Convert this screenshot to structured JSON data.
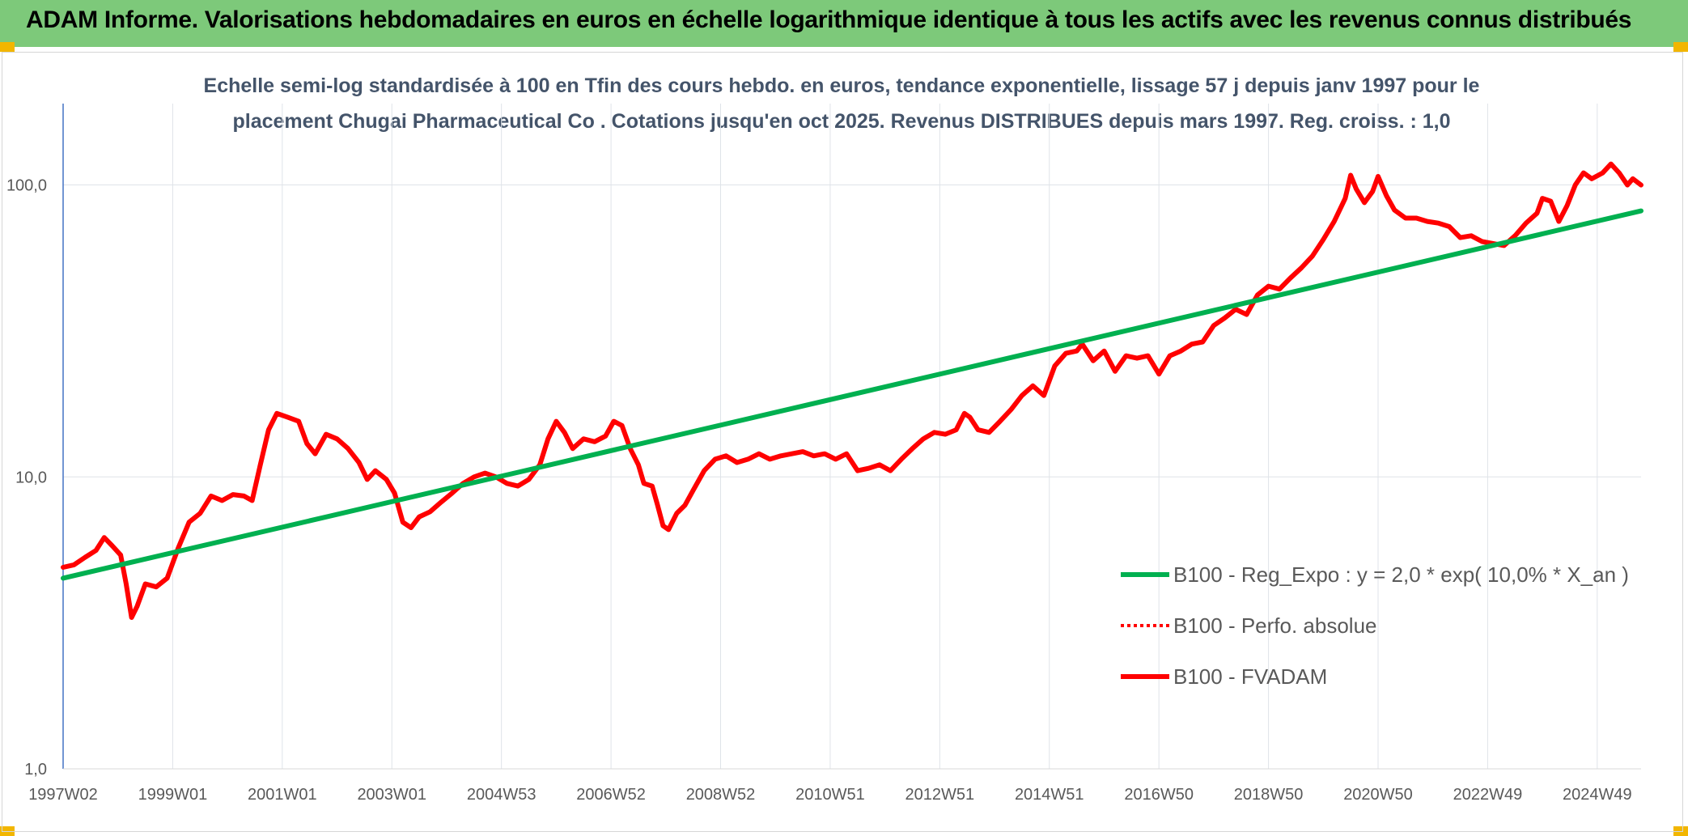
{
  "header": {
    "title": "ADAM Informe. Valorisations hebdomadaires en euros en échelle logarithmique identique à tous les actifs avec les revenus connus distribués"
  },
  "chart_data": {
    "type": "line",
    "subtitle_lines": [
      "Echelle semi-log standardisée à 100 en Tfin des cours hebdo. en euros, tendance exponentielle, lissage 57 j depuis janv 1997 pour le",
      "placement Chugai Pharmaceutical Co . Cotations jusqu'en oct 2025. Revenus DISTRIBUES depuis mars 1997. Reg. croiss. : 1,0"
    ],
    "y_scale": "log",
    "ylim": [
      1,
      190
    ],
    "y_ticks": [
      {
        "value": 1,
        "label": "1,0"
      },
      {
        "value": 10,
        "label": "10,0"
      },
      {
        "value": 100,
        "label": "100,0"
      }
    ],
    "x_range": [
      1997.0,
      2025.8
    ],
    "x_ticks": [
      {
        "x": 1997.0,
        "label": "1997W02"
      },
      {
        "x": 1999.0,
        "label": "1999W01"
      },
      {
        "x": 2001.0,
        "label": "2001W01"
      },
      {
        "x": 2003.0,
        "label": "2003W01"
      },
      {
        "x": 2005.0,
        "label": "2004W53"
      },
      {
        "x": 2007.0,
        "label": "2006W52"
      },
      {
        "x": 2009.0,
        "label": "2008W52"
      },
      {
        "x": 2011.0,
        "label": "2010W51"
      },
      {
        "x": 2013.0,
        "label": "2012W51"
      },
      {
        "x": 2015.0,
        "label": "2014W51"
      },
      {
        "x": 2017.0,
        "label": "2016W50"
      },
      {
        "x": 2019.0,
        "label": "2018W50"
      },
      {
        "x": 2021.0,
        "label": "2020W50"
      },
      {
        "x": 2023.0,
        "label": "2022W49"
      },
      {
        "x": 2025.0,
        "label": "2024W49"
      }
    ],
    "grid": true,
    "legend_position": "bottom-right",
    "series": [
      {
        "name": "B100 - Reg_Expo : y = 2,0 * exp( 10,0% *  X_an )",
        "color": "#00b050",
        "style": "solid",
        "points": [
          [
            1997.0,
            4.5
          ],
          [
            2025.8,
            81.5
          ]
        ]
      },
      {
        "name": "B100 - Perfo. absolue",
        "color": "#ff0000",
        "style": "dotted",
        "points": []
      },
      {
        "name": "B100 - FVADAM",
        "color": "#ff0000",
        "style": "solid",
        "points": [
          [
            1997.0,
            4.9
          ],
          [
            1997.2,
            5.0
          ],
          [
            1997.4,
            5.3
          ],
          [
            1997.6,
            5.6
          ],
          [
            1997.75,
            6.2
          ],
          [
            1997.9,
            5.8
          ],
          [
            1998.05,
            5.4
          ],
          [
            1998.15,
            4.3
          ],
          [
            1998.25,
            3.3
          ],
          [
            1998.35,
            3.6
          ],
          [
            1998.5,
            4.3
          ],
          [
            1998.7,
            4.2
          ],
          [
            1998.9,
            4.5
          ],
          [
            1999.1,
            5.7
          ],
          [
            1999.3,
            7.0
          ],
          [
            1999.5,
            7.5
          ],
          [
            1999.7,
            8.6
          ],
          [
            1999.9,
            8.3
          ],
          [
            2000.1,
            8.7
          ],
          [
            2000.3,
            8.6
          ],
          [
            2000.45,
            8.3
          ],
          [
            2000.6,
            11.0
          ],
          [
            2000.75,
            14.5
          ],
          [
            2000.9,
            16.5
          ],
          [
            2001.1,
            16.0
          ],
          [
            2001.3,
            15.5
          ],
          [
            2001.45,
            13.0
          ],
          [
            2001.6,
            12.0
          ],
          [
            2001.8,
            14.0
          ],
          [
            2002.0,
            13.5
          ],
          [
            2002.2,
            12.5
          ],
          [
            2002.4,
            11.2
          ],
          [
            2002.55,
            9.8
          ],
          [
            2002.7,
            10.5
          ],
          [
            2002.9,
            9.8
          ],
          [
            2003.05,
            8.8
          ],
          [
            2003.2,
            7.0
          ],
          [
            2003.35,
            6.7
          ],
          [
            2003.5,
            7.3
          ],
          [
            2003.7,
            7.6
          ],
          [
            2003.9,
            8.2
          ],
          [
            2004.1,
            8.8
          ],
          [
            2004.3,
            9.5
          ],
          [
            2004.5,
            10.0
          ],
          [
            2004.7,
            10.3
          ],
          [
            2004.9,
            10.0
          ],
          [
            2005.1,
            9.5
          ],
          [
            2005.3,
            9.3
          ],
          [
            2005.5,
            9.8
          ],
          [
            2005.7,
            11.0
          ],
          [
            2005.85,
            13.5
          ],
          [
            2006.0,
            15.5
          ],
          [
            2006.15,
            14.2
          ],
          [
            2006.3,
            12.5
          ],
          [
            2006.5,
            13.5
          ],
          [
            2006.7,
            13.2
          ],
          [
            2006.9,
            13.8
          ],
          [
            2007.05,
            15.5
          ],
          [
            2007.2,
            15.0
          ],
          [
            2007.35,
            12.5
          ],
          [
            2007.5,
            11.0
          ],
          [
            2007.6,
            9.5
          ],
          [
            2007.75,
            9.3
          ],
          [
            2007.85,
            8.0
          ],
          [
            2007.95,
            6.8
          ],
          [
            2008.05,
            6.6
          ],
          [
            2008.2,
            7.5
          ],
          [
            2008.35,
            8.0
          ],
          [
            2008.5,
            9.0
          ],
          [
            2008.7,
            10.5
          ],
          [
            2008.9,
            11.5
          ],
          [
            2009.1,
            11.8
          ],
          [
            2009.3,
            11.2
          ],
          [
            2009.5,
            11.5
          ],
          [
            2009.7,
            12.0
          ],
          [
            2009.9,
            11.5
          ],
          [
            2010.1,
            11.8
          ],
          [
            2010.3,
            12.0
          ],
          [
            2010.5,
            12.2
          ],
          [
            2010.7,
            11.8
          ],
          [
            2010.9,
            12.0
          ],
          [
            2011.1,
            11.5
          ],
          [
            2011.3,
            12.0
          ],
          [
            2011.5,
            10.5
          ],
          [
            2011.7,
            10.7
          ],
          [
            2011.9,
            11.0
          ],
          [
            2012.1,
            10.5
          ],
          [
            2012.3,
            11.5
          ],
          [
            2012.5,
            12.5
          ],
          [
            2012.7,
            13.5
          ],
          [
            2012.9,
            14.2
          ],
          [
            2013.1,
            14.0
          ],
          [
            2013.3,
            14.5
          ],
          [
            2013.45,
            16.5
          ],
          [
            2013.55,
            16.0
          ],
          [
            2013.7,
            14.5
          ],
          [
            2013.9,
            14.2
          ],
          [
            2014.1,
            15.5
          ],
          [
            2014.3,
            17.0
          ],
          [
            2014.5,
            19.0
          ],
          [
            2014.7,
            20.5
          ],
          [
            2014.9,
            19.0
          ],
          [
            2015.1,
            24.0
          ],
          [
            2015.3,
            26.5
          ],
          [
            2015.5,
            27.0
          ],
          [
            2015.6,
            28.5
          ],
          [
            2015.8,
            25.0
          ],
          [
            2016.0,
            27.0
          ],
          [
            2016.2,
            23.0
          ],
          [
            2016.4,
            26.0
          ],
          [
            2016.6,
            25.5
          ],
          [
            2016.8,
            26.0
          ],
          [
            2017.0,
            22.5
          ],
          [
            2017.2,
            26.0
          ],
          [
            2017.4,
            27.0
          ],
          [
            2017.6,
            28.5
          ],
          [
            2017.8,
            29.0
          ],
          [
            2018.0,
            33.0
          ],
          [
            2018.2,
            35.0
          ],
          [
            2018.4,
            37.5
          ],
          [
            2018.6,
            36.0
          ],
          [
            2018.8,
            42.0
          ],
          [
            2019.0,
            45.0
          ],
          [
            2019.2,
            44.0
          ],
          [
            2019.4,
            48.0
          ],
          [
            2019.6,
            52.0
          ],
          [
            2019.8,
            57.0
          ],
          [
            2020.0,
            65.0
          ],
          [
            2020.2,
            75.0
          ],
          [
            2020.4,
            90.0
          ],
          [
            2020.5,
            108.0
          ],
          [
            2020.6,
            97.0
          ],
          [
            2020.75,
            87.0
          ],
          [
            2020.9,
            95.0
          ],
          [
            2021.0,
            107.0
          ],
          [
            2021.15,
            92.0
          ],
          [
            2021.3,
            82.0
          ],
          [
            2021.5,
            77.0
          ],
          [
            2021.7,
            77.0
          ],
          [
            2021.9,
            75.0
          ],
          [
            2022.1,
            74.0
          ],
          [
            2022.3,
            72.0
          ],
          [
            2022.5,
            66.0
          ],
          [
            2022.7,
            67.0
          ],
          [
            2022.9,
            64.0
          ],
          [
            2023.1,
            63.0
          ],
          [
            2023.3,
            62.0
          ],
          [
            2023.5,
            67.0
          ],
          [
            2023.7,
            74.0
          ],
          [
            2023.9,
            80.0
          ],
          [
            2024.0,
            90.0
          ],
          [
            2024.15,
            88.0
          ],
          [
            2024.3,
            75.0
          ],
          [
            2024.45,
            85.0
          ],
          [
            2024.6,
            100.0
          ],
          [
            2024.75,
            110.0
          ],
          [
            2024.9,
            105.0
          ],
          [
            2025.1,
            110.0
          ],
          [
            2025.25,
            118.0
          ],
          [
            2025.4,
            110.0
          ],
          [
            2025.55,
            100.0
          ],
          [
            2025.65,
            105.0
          ],
          [
            2025.8,
            100.0
          ]
        ]
      }
    ]
  }
}
